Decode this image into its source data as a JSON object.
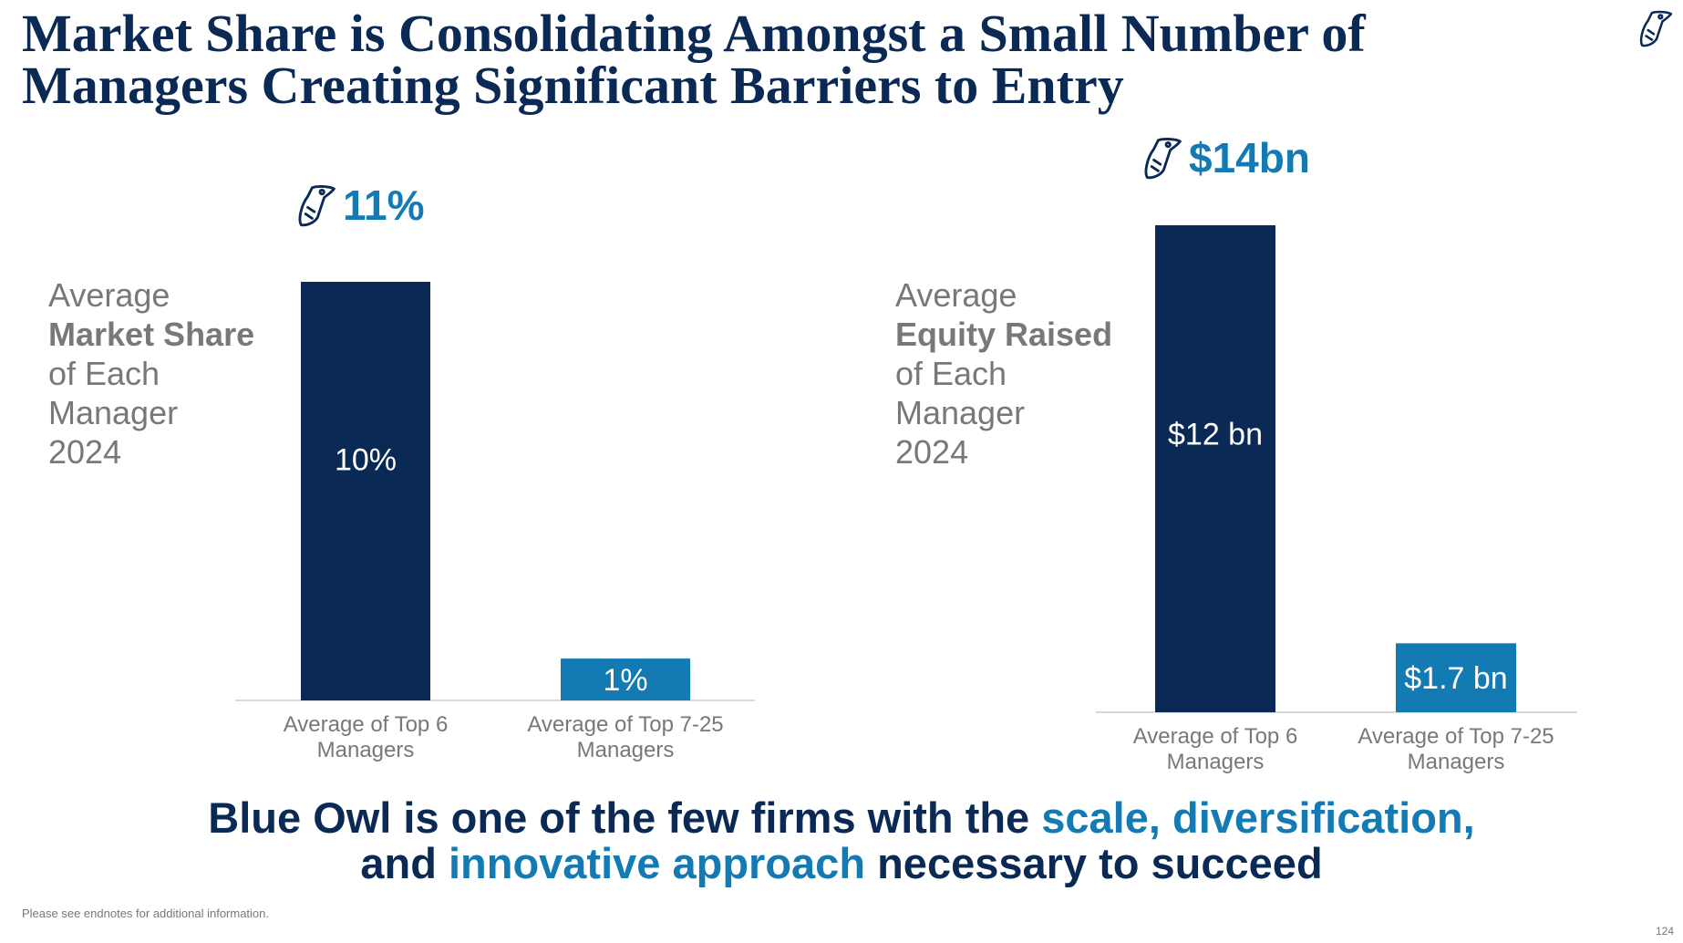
{
  "slide": {
    "title_line1": "Market Share is Consolidating Amongst a Small Number of",
    "title_line2": "Managers Creating Significant Barriers to Entry",
    "footnote": "Please see endnotes for additional information.",
    "page_number": "124",
    "logo_icon": "owl-logo-icon"
  },
  "colors": {
    "navy": "#0b2955",
    "blue": "#137ab3",
    "grey": "#77787b"
  },
  "left_panel": {
    "kpi": "11%",
    "label_line1": "Average",
    "label_line2": "Market Share",
    "label_line3": "of Each",
    "label_line4": "Manager",
    "label_line5": "2024"
  },
  "right_panel": {
    "kpi": "$14bn",
    "label_line1": "Average",
    "label_line2": "Equity Raised",
    "label_line3": "of Each",
    "label_line4": "Manager",
    "label_line5": "2024"
  },
  "tagline": {
    "l1_part1": "Blue Owl is one of the few firms with the ",
    "l1_part2": "scale, diversification,",
    "l2_part1": "and ",
    "l2_part2": "innovative approach",
    "l2_part3": " necessary to succeed"
  },
  "chart_data": [
    {
      "type": "bar",
      "categories": [
        "Average of Top 6 Managers",
        "Average of Top 7-25 Managers"
      ],
      "values": [
        10,
        1
      ],
      "data_labels": [
        "10%",
        "1%"
      ],
      "unit": "%",
      "ylim": [
        0,
        10
      ],
      "grid": false,
      "bar_colors": [
        "#0b2955",
        "#137ab3"
      ]
    },
    {
      "type": "bar",
      "categories": [
        "Average of Top 6 Managers",
        "Average of Top 7-25 Managers"
      ],
      "values": [
        12,
        1.7
      ],
      "data_labels": [
        "$12 bn",
        "$1.7 bn"
      ],
      "unit": "$bn",
      "ylim": [
        0,
        12
      ],
      "grid": false,
      "bar_colors": [
        "#0b2955",
        "#137ab3"
      ]
    }
  ]
}
